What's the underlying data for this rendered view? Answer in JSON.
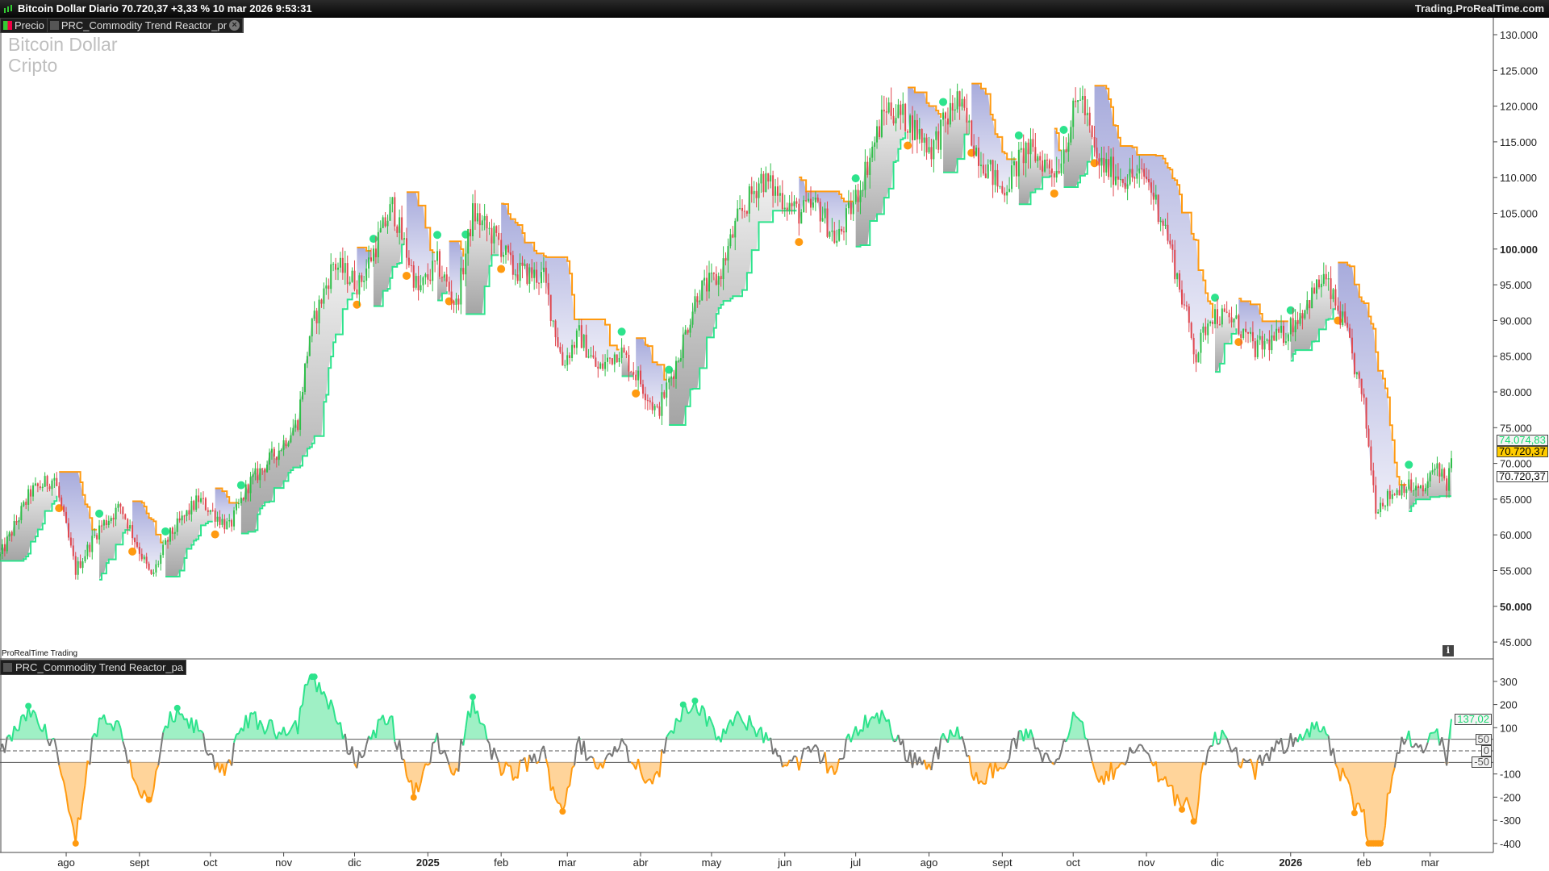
{
  "header": {
    "title": "Bitcoin Dollar Diario 70.720,37 +3,33 % 10 mar 2026 9:53:31",
    "site": "Trading.ProRealTime.com"
  },
  "tabs": [
    {
      "label": "Precio"
    },
    {
      "label": "PRC_Commodity Trend Reactor_pr"
    }
  ],
  "watermark": {
    "name": "Bitcoin Dollar",
    "category": "Cripto"
  },
  "footer_brand": "ProRealTime Trading",
  "indicator_tab": "PRC_Commodity Trend Reactor_pa",
  "colors": {
    "up": "#2fbf4a",
    "down": "#e0474f",
    "bull_line": "#2de38c",
    "bear_line": "#ff9a10",
    "bull_fill": "#9a9a9a",
    "bear_fill": "#9ea2d8",
    "last_price_bg": "#ffcc00"
  },
  "price_axis": {
    "labels": [
      "130.000",
      "125.000",
      "120.000",
      "115.000",
      "110.000",
      "105.000",
      "100.000",
      "95.000",
      "90.000",
      "85.000",
      "80.000",
      "75.000",
      "70.000",
      "65.000",
      "60.000",
      "55.000",
      "50.000",
      "45.000"
    ],
    "values": [
      130000,
      125000,
      120000,
      115000,
      110000,
      105000,
      100000,
      95000,
      90000,
      85000,
      80000,
      75000,
      70000,
      65000,
      60000,
      55000,
      50000,
      45000
    ],
    "bold": [
      "100.000",
      "50.000"
    ]
  },
  "indicator_axis": {
    "labels": [
      "300",
      "200",
      "100",
      "-100",
      "-200",
      "-300",
      "-400"
    ],
    "values": [
      300,
      200,
      100,
      -100,
      -200,
      -300,
      -400
    ],
    "levels": [
      50,
      0,
      -50
    ],
    "level_labels": [
      "50",
      "0",
      "-50"
    ]
  },
  "date_axis": [
    {
      "label": "ago",
      "date": "2024-08-01"
    },
    {
      "label": "sept",
      "date": "2024-09-01"
    },
    {
      "label": "oct",
      "date": "2024-10-01"
    },
    {
      "label": "nov",
      "date": "2024-11-01"
    },
    {
      "label": "dic",
      "date": "2024-12-01"
    },
    {
      "label": "2025",
      "date": "2025-01-01",
      "bold": true
    },
    {
      "label": "feb",
      "date": "2025-02-01"
    },
    {
      "label": "mar",
      "date": "2025-03-01"
    },
    {
      "label": "abr",
      "date": "2025-04-01"
    },
    {
      "label": "may",
      "date": "2025-05-01"
    },
    {
      "label": "jun",
      "date": "2025-06-01"
    },
    {
      "label": "jul",
      "date": "2025-07-01"
    },
    {
      "label": "ago",
      "date": "2025-08-01"
    },
    {
      "label": "sept",
      "date": "2025-09-01"
    },
    {
      "label": "oct",
      "date": "2025-10-01"
    },
    {
      "label": "nov",
      "date": "2025-11-01"
    },
    {
      "label": "dic",
      "date": "2025-12-01"
    },
    {
      "label": "2026",
      "date": "2026-01-01",
      "bold": true
    },
    {
      "label": "feb",
      "date": "2026-02-01"
    },
    {
      "label": "mar",
      "date": "2026-03-01"
    }
  ],
  "price_tags": {
    "trend_level": "74.074,83",
    "last_price": "70.720,37",
    "close": "70.720,37",
    "trend_level_value": 74074.83,
    "last_price_value": 70720.37
  },
  "indicator_tag": {
    "label": "137,02",
    "value": 137.02
  },
  "price_path": [
    [
      "2024-07-04",
      57000
    ],
    [
      "2024-07-17",
      66000
    ],
    [
      "2024-07-27",
      68000
    ],
    [
      "2024-08-05",
      55000
    ],
    [
      "2024-08-15",
      61000
    ],
    [
      "2024-08-24",
      64000
    ],
    [
      "2024-09-06",
      54000
    ],
    [
      "2024-09-14",
      60000
    ],
    [
      "2024-09-26",
      65000
    ],
    [
      "2024-10-09",
      61000
    ],
    [
      "2024-10-17",
      67000
    ],
    [
      "2024-10-30",
      72000
    ],
    [
      "2024-11-07",
      76000
    ],
    [
      "2024-11-12",
      88000
    ],
    [
      "2024-11-22",
      98000
    ],
    [
      "2024-12-03",
      95000
    ],
    [
      "2024-12-17",
      106000
    ],
    [
      "2024-12-28",
      94000
    ],
    [
      "2025-01-05",
      98000
    ],
    [
      "2025-01-13",
      92000
    ],
    [
      "2025-01-20",
      105000
    ],
    [
      "2025-01-31",
      101000
    ],
    [
      "2025-02-06",
      97000
    ],
    [
      "2025-02-19",
      96000
    ],
    [
      "2025-02-27",
      84000
    ],
    [
      "2025-03-06",
      88000
    ],
    [
      "2025-03-14",
      83000
    ],
    [
      "2025-03-23",
      86000
    ],
    [
      "2025-03-31",
      82000
    ],
    [
      "2025-04-08",
      77000
    ],
    [
      "2025-04-17",
      85000
    ],
    [
      "2025-04-25",
      94000
    ],
    [
      "2025-05-04",
      96000
    ],
    [
      "2025-05-12",
      104000
    ],
    [
      "2025-05-22",
      110000
    ],
    [
      "2025-06-07",
      105000
    ],
    [
      "2025-06-15",
      106000
    ],
    [
      "2025-06-23",
      101000
    ],
    [
      "2025-07-02",
      108000
    ],
    [
      "2025-07-14",
      120000
    ],
    [
      "2025-07-23",
      118000
    ],
    [
      "2025-08-02",
      114000
    ],
    [
      "2025-08-13",
      121000
    ],
    [
      "2025-08-21",
      114000
    ],
    [
      "2025-09-01",
      108000
    ],
    [
      "2025-09-11",
      114000
    ],
    [
      "2025-09-24",
      111000
    ],
    [
      "2025-10-04",
      122000
    ],
    [
      "2025-10-11",
      112000
    ],
    [
      "2025-10-23",
      110000
    ],
    [
      "2025-11-01",
      110000
    ],
    [
      "2025-11-09",
      103000
    ],
    [
      "2025-11-22",
      85000
    ],
    [
      "2025-11-28",
      91000
    ],
    [
      "2025-12-08",
      90000
    ],
    [
      "2025-12-17",
      86000
    ],
    [
      "2025-12-29",
      88000
    ],
    [
      "2026-01-07",
      92000
    ],
    [
      "2026-01-15",
      96000
    ],
    [
      "2026-01-24",
      89000
    ],
    [
      "2026-02-01",
      78000
    ],
    [
      "2026-02-06",
      64000
    ],
    [
      "2026-02-18",
      67000
    ],
    [
      "2026-02-26",
      66000
    ],
    [
      "2026-03-04",
      70000
    ],
    [
      "2026-03-08",
      67000
    ],
    [
      "2026-03-10",
      70720
    ]
  ]
}
